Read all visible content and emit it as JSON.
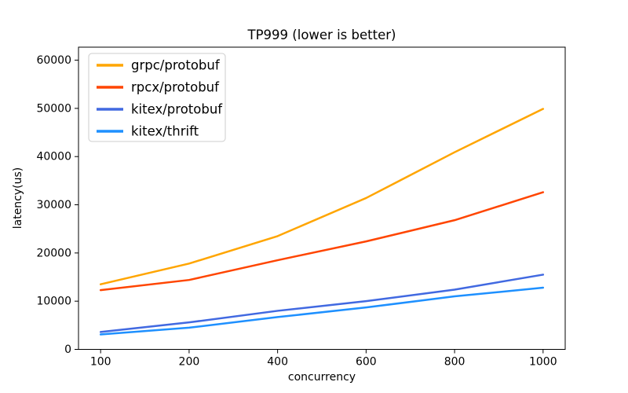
{
  "chart_data": {
    "type": "line",
    "title": "TP999 (lower is better)",
    "xlabel": "concurrency",
    "ylabel": "latency(us)",
    "x": [
      100,
      200,
      400,
      600,
      800,
      1000
    ],
    "x_spacing": "categorical-even",
    "ylim": [
      0,
      62700
    ],
    "yticks": [
      0,
      10000,
      20000,
      30000,
      40000,
      50000,
      60000
    ],
    "grid": false,
    "legend_position": "upper-left",
    "frame_color": "#000000",
    "background_color": "#ffffff",
    "legend_border_color": "#cccccc",
    "series": [
      {
        "name": "grpc/protobuf",
        "color": "#ffa500",
        "values": [
          13500,
          17800,
          23500,
          31400,
          40900,
          49900
        ]
      },
      {
        "name": "rpcx/protobuf",
        "color": "#ff4500",
        "values": [
          12300,
          14400,
          18500,
          22400,
          26800,
          32600
        ]
      },
      {
        "name": "kitex/protobuf",
        "color": "#4169e1",
        "values": [
          3600,
          5600,
          8000,
          10000,
          12400,
          15500
        ]
      },
      {
        "name": "kitex/thrift",
        "color": "#1e90ff",
        "values": [
          3100,
          4500,
          6700,
          8700,
          11000,
          12800
        ]
      }
    ]
  }
}
